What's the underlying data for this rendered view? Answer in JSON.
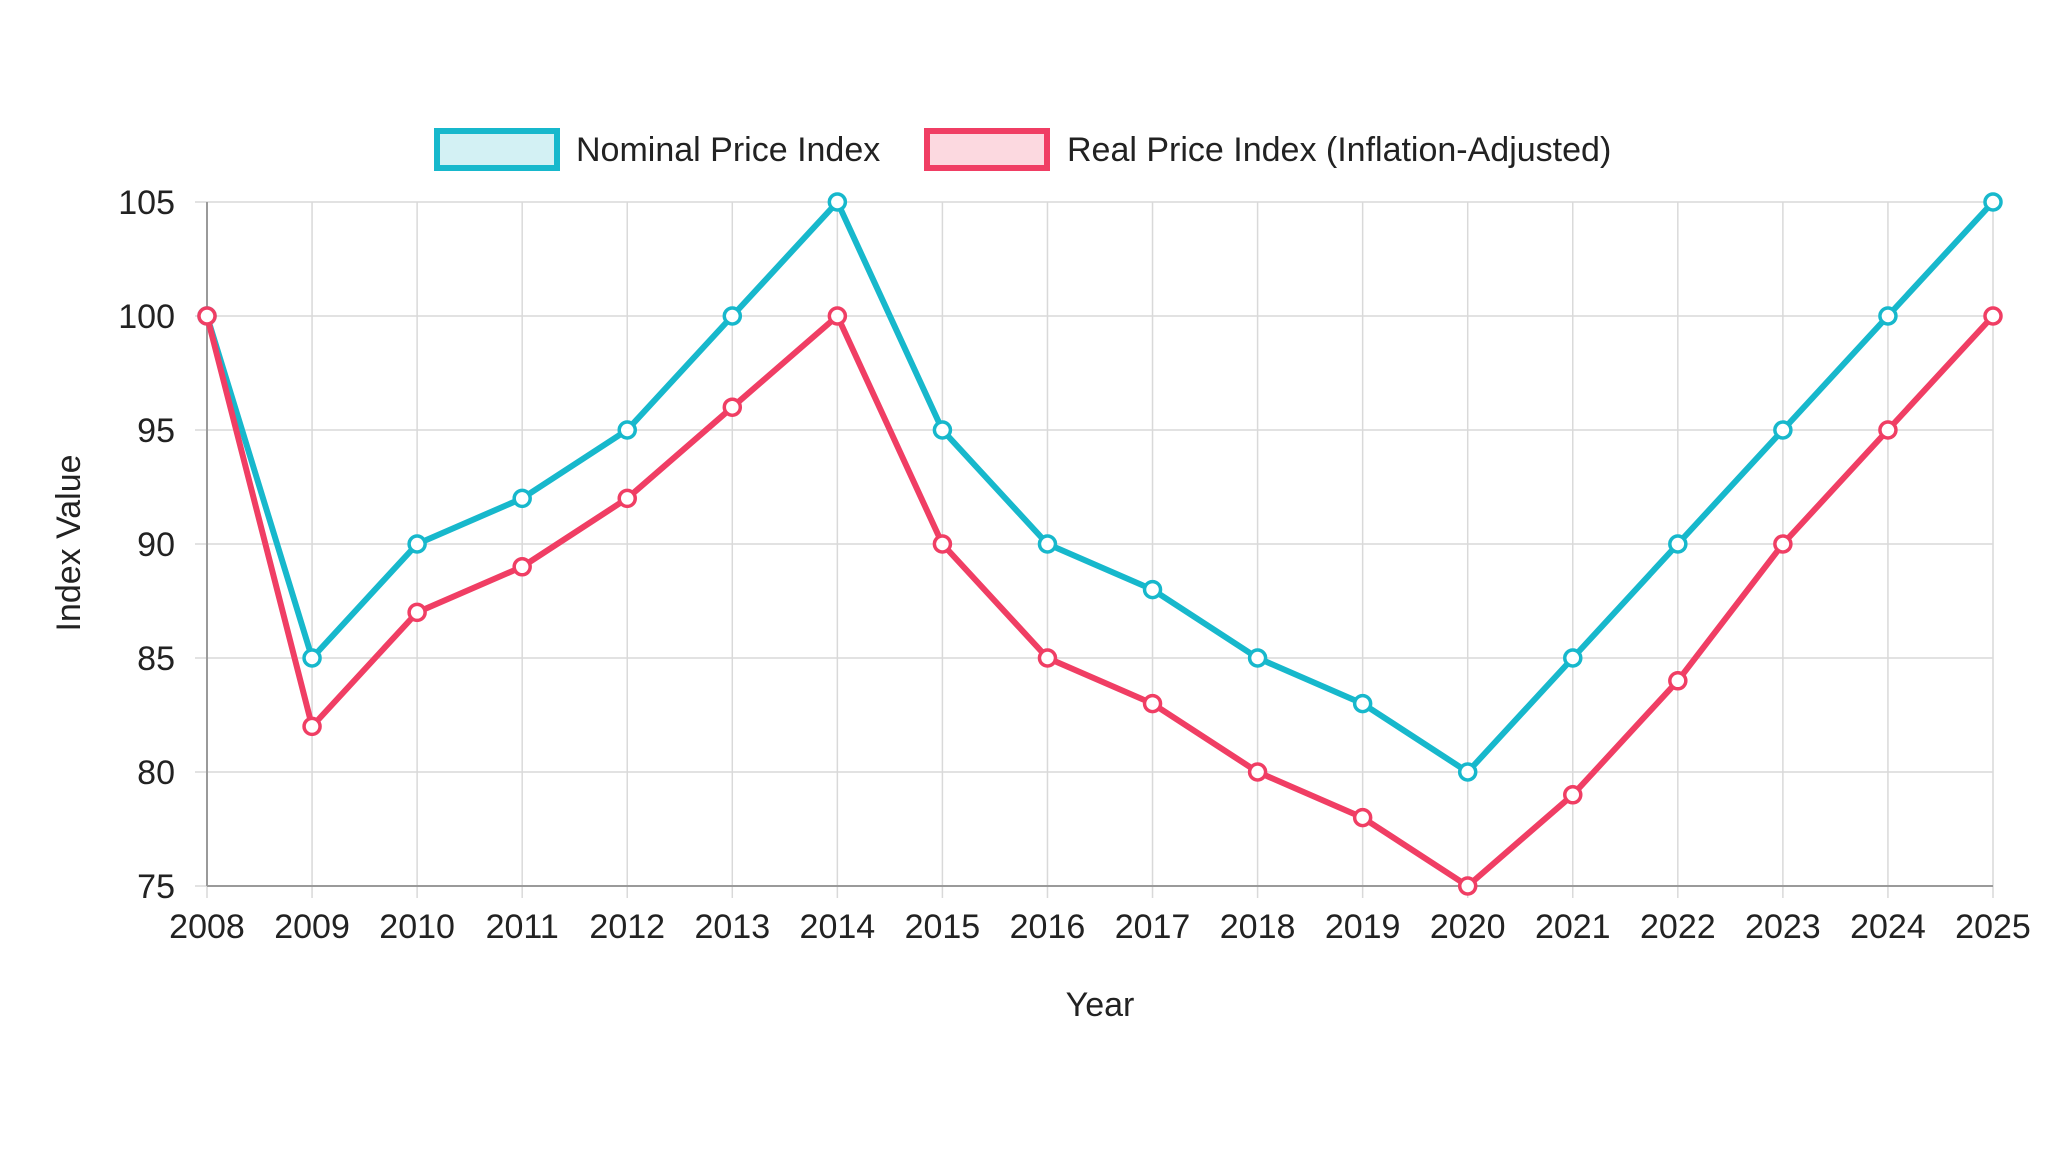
{
  "chart_data": {
    "type": "line",
    "title": "",
    "xlabel": "Year",
    "ylabel": "Index Value",
    "categories": [
      "2008",
      "2009",
      "2010",
      "2011",
      "2012",
      "2013",
      "2014",
      "2015",
      "2016",
      "2017",
      "2018",
      "2019",
      "2020",
      "2021",
      "2022",
      "2023",
      "2024",
      "2025"
    ],
    "ylim": [
      75,
      105
    ],
    "yticks": [
      75,
      80,
      85,
      90,
      95,
      100,
      105
    ],
    "grid": true,
    "legend_position": "top-center",
    "series": [
      {
        "name": "Nominal Price Index",
        "color": "#17b8cc",
        "fill": "#d3f1f4",
        "values": [
          100,
          85,
          90,
          92,
          95,
          100,
          105,
          95,
          90,
          88,
          85,
          83,
          80,
          85,
          90,
          95,
          100,
          105
        ]
      },
      {
        "name": "Real Price Index (Inflation-Adjusted)",
        "color": "#f03e64",
        "fill": "#fcd9e0",
        "values": [
          100,
          82,
          87,
          89,
          92,
          96,
          100,
          90,
          85,
          83,
          80,
          78,
          75,
          79,
          84,
          90,
          95,
          100
        ]
      }
    ]
  }
}
